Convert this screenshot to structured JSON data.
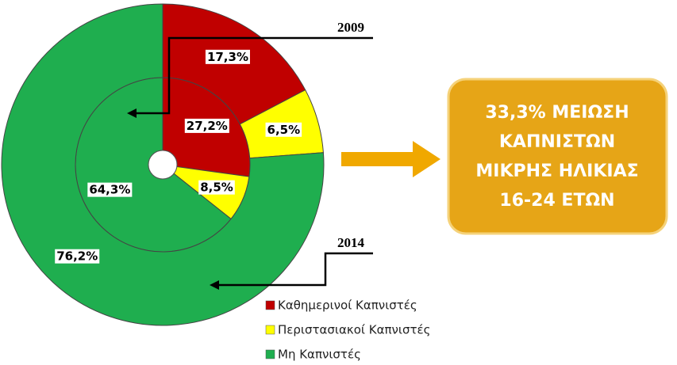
{
  "chart_data": {
    "type": "donut",
    "categories": [
      "Καθημερινοί Καπνιστές",
      "Περιστασιακοί Καπνιστές",
      "Μη Καπνιστές"
    ],
    "colors": [
      "#c00000",
      "#ffff00",
      "#1fae4f"
    ],
    "series": [
      {
        "name": "2009",
        "values": [
          27.2,
          8.5,
          64.3
        ],
        "value_labels": [
          "27,2%",
          "8,5%",
          "64,3%"
        ]
      },
      {
        "name": "2014",
        "values": [
          17.3,
          6.5,
          76.2
        ],
        "value_labels": [
          "17,3%",
          "6,5%",
          "76,2%"
        ]
      }
    ],
    "annotation": [
      "33,3% ΜΕΙΩΣΗ",
      "ΚΑΠΝΙΣΤΩΝ",
      "ΜΙΚΡΗΣ ΗΛΙΚΙΑΣ",
      "16-24 ΕΤΩΝ"
    ]
  }
}
